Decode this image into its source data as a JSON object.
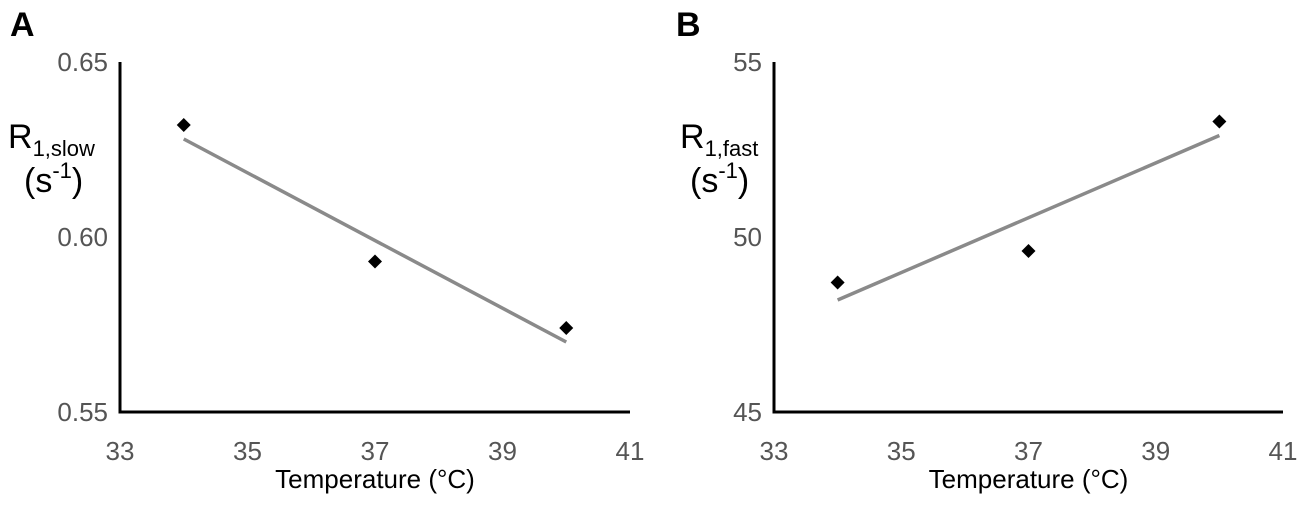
{
  "chart_data": [
    {
      "panel_label": "A",
      "type": "scatter",
      "x_axis_label": "Temperature (°C)",
      "y_axis_label": {
        "base": "R",
        "subscript": "1,slow",
        "unit_base": "(s",
        "unit_sup": "-1",
        "unit_close": ")"
      },
      "xlim": [
        33,
        41
      ],
      "ylim": [
        0.55,
        0.65
      ],
      "x_ticks": [
        33,
        35,
        37,
        39,
        41
      ],
      "y_ticks": [
        0.55,
        0.6,
        0.65
      ],
      "x_tick_labels": [
        "33",
        "35",
        "37",
        "39",
        "41"
      ],
      "y_tick_labels": [
        "0.55",
        "0.60",
        "0.65"
      ],
      "points": [
        {
          "x": 34,
          "y": 0.632
        },
        {
          "x": 37,
          "y": 0.593
        },
        {
          "x": 40,
          "y": 0.574
        }
      ],
      "trendline": {
        "x": [
          34,
          40
        ],
        "y": [
          0.628,
          0.57
        ]
      },
      "grid": false,
      "colors": {
        "points": "#000000",
        "trendline": "#8a8a8a",
        "axes": "#000000",
        "ticks": "#555555"
      }
    },
    {
      "panel_label": "B",
      "type": "scatter",
      "x_axis_label": "Temperature (°C)",
      "y_axis_label": {
        "base": "R",
        "subscript": "1,fast",
        "unit_base": "(s",
        "unit_sup": "-1",
        "unit_close": ")"
      },
      "xlim": [
        33,
        41
      ],
      "ylim": [
        45,
        55
      ],
      "x_ticks": [
        33,
        35,
        37,
        39,
        41
      ],
      "y_ticks": [
        45,
        50,
        55
      ],
      "x_tick_labels": [
        "33",
        "35",
        "37",
        "39",
        "41"
      ],
      "y_tick_labels": [
        "45",
        "50",
        "55"
      ],
      "points": [
        {
          "x": 34,
          "y": 48.7
        },
        {
          "x": 37,
          "y": 49.6
        },
        {
          "x": 40,
          "y": 53.3
        }
      ],
      "trendline": {
        "x": [
          34,
          40
        ],
        "y": [
          48.2,
          52.9
        ]
      },
      "grid": false,
      "colors": {
        "points": "#000000",
        "trendline": "#8a8a8a",
        "axes": "#000000",
        "ticks": "#555555"
      }
    }
  ]
}
